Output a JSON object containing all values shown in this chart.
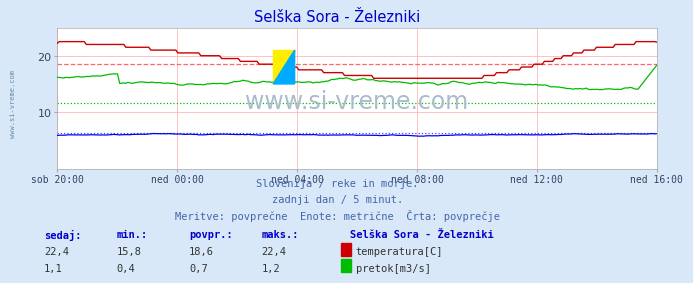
{
  "title": "Selška Sora - Železniki",
  "title_color": "#0000cc",
  "bg_color": "#d8e8f8",
  "plot_bg_color": "#ffffff",
  "grid_color": "#ffaaaa",
  "xlabel_ticks": [
    "sob 20:00",
    "ned 00:00",
    "ned 04:00",
    "ned 08:00",
    "ned 12:00",
    "ned 16:00"
  ],
  "xtick_positions": [
    0,
    48,
    96,
    144,
    192,
    240
  ],
  "ylim": [
    0,
    25
  ],
  "yticks": [
    10,
    20
  ],
  "watermark": "www.si-vreme.com",
  "watermark_color": "#aabbcc",
  "sub_text1": "Slovenija / reke in morje.",
  "sub_text2": "zadnji dan / 5 minut.",
  "sub_text3": "Meritve: povprečne  Enote: metrične  Črta: povprečje",
  "sub_text_color": "#4466aa",
  "temp_color": "#cc0000",
  "flow_color": "#00bb00",
  "height_color": "#0000ee",
  "avg_temp_color": "#ff6666",
  "avg_flow_color": "#00bb00",
  "avg_height_color": "#4444ff",
  "avg_temp": 18.6,
  "avg_flow": 0.7,
  "avg_height": 0.5,
  "total_points": 289,
  "sidebar_text": "www.si-vreme.com",
  "sidebar_color": "#6688aa",
  "table_header": [
    "sedaj:",
    "min.:",
    "povpr.:",
    "maks.:"
  ],
  "table_header_color": "#0000cc",
  "temp_row": [
    "22,4",
    "15,8",
    "18,6",
    "22,4"
  ],
  "flow_row": [
    "1,1",
    "0,4",
    "0,7",
    "1,2"
  ],
  "legend_title": "Selška Sora - Železniki",
  "legend_temp": "temperatura[C]",
  "legend_flow": "pretok[m3/s]",
  "legend_color": "#0000cc",
  "temp_scale_max": 25.0,
  "flow_scale_max": 1.5,
  "height_scale_max": 2.0
}
